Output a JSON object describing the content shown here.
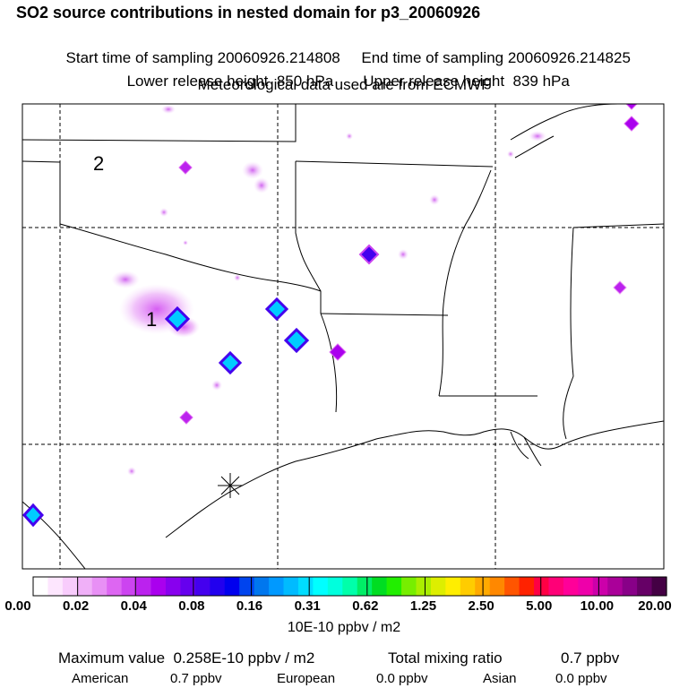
{
  "header": {
    "title": "SO2 source contributions in nested domain for p3_20060926",
    "start_label": "Start time of sampling 20060926.214808",
    "end_label": "End time of sampling 20060926.214825",
    "lower_label": "Lower release height  850 hPa",
    "upper_label": "Upper release height  839 hPa",
    "met_label": "Meteorological data used are from ECMWF"
  },
  "map": {
    "region_labels": [
      "2",
      "1"
    ],
    "release_marker": "asterisk-icon"
  },
  "colorbar": {
    "tick_labels": [
      "0.00",
      "0.02",
      "0.04",
      "0.08",
      "0.16",
      "0.31",
      "0.62",
      "1.25",
      "2.50",
      "5.00",
      "10.00",
      "20.00"
    ],
    "unit": "10E-10 ppbv / m2",
    "colors": [
      "#ffffff",
      "#fde6fe",
      "#f8ccfc",
      "#f0b0f8",
      "#e890f5",
      "#dd66f2",
      "#cc44f0",
      "#bb22ee",
      "#aa00ee",
      "#8800ee",
      "#6600ee",
      "#4400ee",
      "#2200ee",
      "#0000ee",
      "#0044ee",
      "#0077ee",
      "#0099ff",
      "#00bbff",
      "#00ddff",
      "#00ffff",
      "#00ffdd",
      "#00ffaa",
      "#00ee66",
      "#00dd22",
      "#22ee00",
      "#77ee00",
      "#aaee00",
      "#ddee00",
      "#ffee00",
      "#ffcc00",
      "#ffaa00",
      "#ff8800",
      "#ff5500",
      "#ff2200",
      "#ff0044",
      "#ff0077",
      "#ff0099",
      "#ee00aa",
      "#cc00aa",
      "#aa0099",
      "#880088",
      "#660066",
      "#440044"
    ]
  },
  "footer": {
    "max_label": "Maximum value  0.258E-10 ppbv / m2",
    "total_label": "Total mixing ratio",
    "total_value": "0.7 ppbv",
    "american_label": "American",
    "american_value": "0.7 ppbv",
    "european_label": "European",
    "european_value": "0.0 ppbv",
    "asian_label": "Asian",
    "asian_value": "0.0 ppbv"
  }
}
